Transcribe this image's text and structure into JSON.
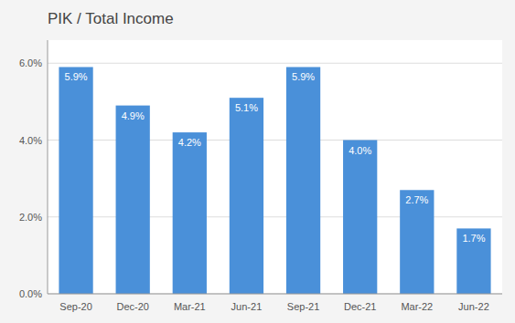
{
  "chart_data": {
    "type": "bar",
    "title": "PIK / Total Income",
    "categories": [
      "Sep-20",
      "Dec-20",
      "Mar-21",
      "Jun-21",
      "Sep-21",
      "Dec-21",
      "Mar-22",
      "Jun-22"
    ],
    "values": [
      5.9,
      4.9,
      4.2,
      5.1,
      5.9,
      4.0,
      2.7,
      1.7
    ],
    "value_labels": [
      "5.9%",
      "4.9%",
      "4.2%",
      "5.1%",
      "5.9%",
      "4.0%",
      "2.7%",
      "1.7%"
    ],
    "color": "#4A90D9",
    "ylim": [
      0,
      6.6
    ],
    "yticks": [
      {
        "value": 0.0,
        "label": "0.0%"
      },
      {
        "value": 2.0,
        "label": "2.0%"
      },
      {
        "value": 4.0,
        "label": "4.0%"
      },
      {
        "value": 6.0,
        "label": "6.0%"
      }
    ],
    "grid": true,
    "data_labels": true
  }
}
